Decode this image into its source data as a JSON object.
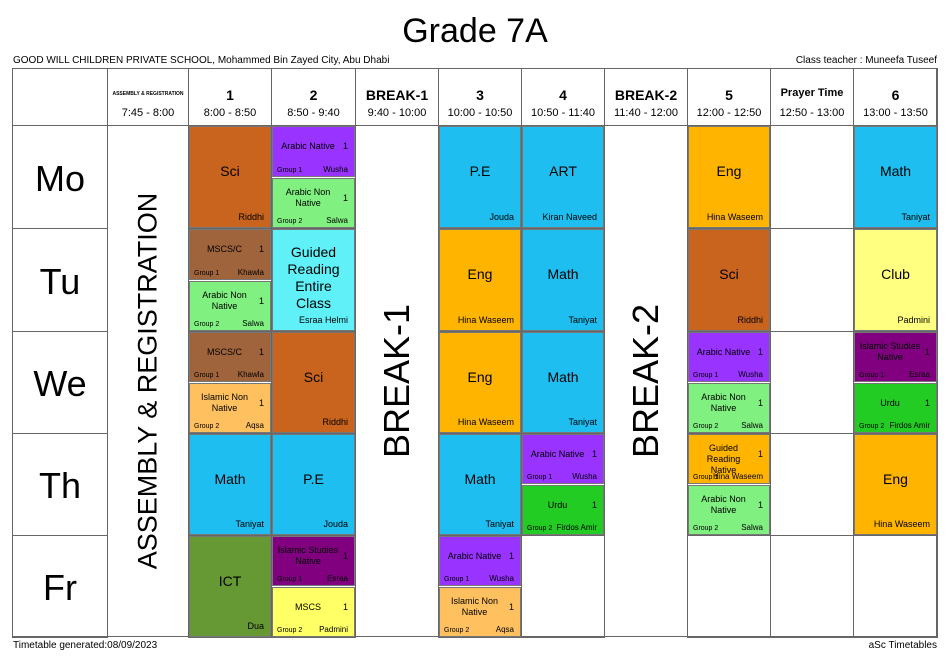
{
  "header": {
    "title": "Grade 7A",
    "school": "GOOD WILL CHILDREN PRIVATE SCHOOL, Mohammed Bin Zayed City, Abu Dhabi",
    "class_teacher": "Class teacher : Muneefa Tuseef"
  },
  "periods": [
    {
      "name": "ASSEMBLY & REGISTRATION",
      "time": "7:45 - 8:00",
      "banner": "ASSEMBLY & REGISTRATION"
    },
    {
      "name": "1",
      "time": "8:00 - 8:50"
    },
    {
      "name": "2",
      "time": "8:50 - 9:40"
    },
    {
      "name": "BREAK-1",
      "time": "9:40 - 10:00",
      "banner": "BREAK-1"
    },
    {
      "name": "3",
      "time": "10:00 - 10:50"
    },
    {
      "name": "4",
      "time": "10:50 - 11:40"
    },
    {
      "name": "BREAK-2",
      "time": "11:40 - 12:00",
      "banner": "BREAK-2"
    },
    {
      "name": "5",
      "time": "12:00 - 12:50"
    },
    {
      "name": "Prayer Time",
      "time": "12:50 - 13:00"
    },
    {
      "name": "6",
      "time": "13:00 - 13:50"
    }
  ],
  "days": [
    {
      "name": "Mo",
      "cells": [
        null,
        [
          {
            "subject": "Sci",
            "teacher": "Riddhi",
            "color": "#c8641e"
          }
        ],
        [
          {
            "subject": "Arabic Native",
            "count": 1,
            "group": "Group 1",
            "teacher": "Wusha",
            "color": "#9933ff"
          },
          {
            "subject": "Arabic Non Native",
            "count": 1,
            "group": "Group 2",
            "teacher": "Salwa",
            "color": "#80f080"
          }
        ],
        null,
        [
          {
            "subject": "P.E",
            "teacher": "Jouda",
            "color": "#1ebff0"
          }
        ],
        [
          {
            "subject": "ART",
            "teacher": "Kiran Naveed",
            "color": "#1ebff0"
          }
        ],
        null,
        [
          {
            "subject": "Eng",
            "teacher": "Hina Waseem",
            "color": "#ffb400"
          }
        ],
        [],
        [
          {
            "subject": "Math",
            "teacher": "Taniyat",
            "color": "#1ebff0"
          }
        ]
      ]
    },
    {
      "name": "Tu",
      "cells": [
        null,
        [
          {
            "subject": "MSCS/C",
            "count": 1,
            "group": "Group 1",
            "teacher": "Khawla",
            "color": "#a0643c"
          },
          {
            "subject": "Arabic Non Native",
            "count": 1,
            "group": "Group 2",
            "teacher": "Salwa",
            "color": "#80f080"
          }
        ],
        [
          {
            "subject": "Guided Reading Entire Class",
            "teacher": "Esraa Helmi",
            "color": "#5ff0f8"
          }
        ],
        null,
        [
          {
            "subject": "Eng",
            "teacher": "Hina Waseem",
            "color": "#ffb400"
          }
        ],
        [
          {
            "subject": "Math",
            "teacher": "Taniyat",
            "color": "#1ebff0"
          }
        ],
        null,
        [
          {
            "subject": "Sci",
            "teacher": "Riddhi",
            "color": "#c8641e"
          }
        ],
        [],
        [
          {
            "subject": "Club",
            "teacher": "Padmini",
            "color": "#ffff80"
          }
        ]
      ]
    },
    {
      "name": "We",
      "cells": [
        null,
        [
          {
            "subject": "MSCS/C",
            "count": 1,
            "group": "Group 1",
            "teacher": "Khawla",
            "color": "#a0643c"
          },
          {
            "subject": "Islamic Non Native",
            "count": 1,
            "group": "Group 2",
            "teacher": "Aqsa",
            "color": "#ffc060"
          }
        ],
        [
          {
            "subject": "Sci",
            "teacher": "Riddhi",
            "color": "#c8641e"
          }
        ],
        null,
        [
          {
            "subject": "Eng",
            "teacher": "Hina Waseem",
            "color": "#ffb400"
          }
        ],
        [
          {
            "subject": "Math",
            "teacher": "Taniyat",
            "color": "#1ebff0"
          }
        ],
        null,
        [
          {
            "subject": "Arabic Native",
            "count": 1,
            "group": "Group 1",
            "teacher": "Wusha",
            "color": "#9933ff"
          },
          {
            "subject": "Arabic Non Native",
            "count": 1,
            "group": "Group 2",
            "teacher": "Salwa",
            "color": "#80f080"
          }
        ],
        [],
        [
          {
            "subject": "Islamic Studies Native",
            "count": 1,
            "group": "Group 1",
            "teacher": "Esraa",
            "color": "#800080"
          },
          {
            "subject": "Urdu",
            "count": 1,
            "group": "Group 2",
            "teacher": "Firdos Amir",
            "color": "#22cc22"
          }
        ]
      ]
    },
    {
      "name": "Th",
      "cells": [
        null,
        [
          {
            "subject": "Math",
            "teacher": "Taniyat",
            "color": "#1ebff0"
          }
        ],
        [
          {
            "subject": "P.E",
            "teacher": "Jouda",
            "color": "#1ebff0"
          }
        ],
        null,
        [
          {
            "subject": "Math",
            "teacher": "Taniyat",
            "color": "#1ebff0"
          }
        ],
        [
          {
            "subject": "Arabic Native",
            "count": 1,
            "group": "Group 1",
            "teacher": "Wusha",
            "color": "#9933ff"
          },
          {
            "subject": "Urdu",
            "count": 1,
            "group": "Group 2",
            "teacher": "Firdos Amir",
            "color": "#22cc22"
          }
        ],
        null,
        [
          {
            "subject": "Guided Reading Native",
            "count": 1,
            "group": "Group 1",
            "teacher": "Hina Waseem",
            "color": "#ffb400"
          },
          {
            "subject": "Arabic Non Native",
            "count": 1,
            "group": "Group 2",
            "teacher": "Salwa",
            "color": "#80f080"
          }
        ],
        [],
        [
          {
            "subject": "Eng",
            "teacher": "Hina Waseem",
            "color": "#ffb400"
          }
        ]
      ]
    },
    {
      "name": "Fr",
      "cells": [
        null,
        [
          {
            "subject": "ICT",
            "teacher": "Dua",
            "color": "#669933"
          }
        ],
        [
          {
            "subject": "Islamic Studies Native",
            "count": 1,
            "group": "Group 1",
            "teacher": "Esraa",
            "color": "#800080"
          },
          {
            "subject": "MSCS",
            "count": 1,
            "group": "Group 2",
            "teacher": "Padmini",
            "color": "#ffff66"
          }
        ],
        null,
        [
          {
            "subject": "Arabic Native",
            "count": 1,
            "group": "Group 1",
            "teacher": "Wusha",
            "color": "#9933ff"
          },
          {
            "subject": "Islamic Non Native",
            "count": 1,
            "group": "Group 2",
            "teacher": "Aqsa",
            "color": "#ffc060"
          }
        ],
        [],
        null,
        [],
        [],
        []
      ]
    }
  ],
  "footer": {
    "generated": "Timetable generated:08/09/2023",
    "brand": "aSc Timetables"
  }
}
